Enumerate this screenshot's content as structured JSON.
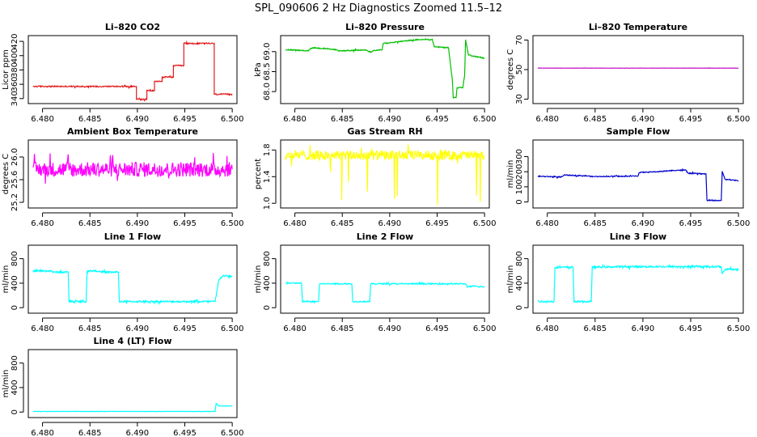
{
  "title": "SPL_090606  2 Hz Diagnostics Zoomed 11.5–12",
  "chart_data": [
    {
      "type": "line",
      "title": "Li–820 CO2",
      "ylabel": "Licor ppm",
      "xlim": [
        6.4785,
        6.5005
      ],
      "ylim": [
        333,
        428
      ],
      "xticks": [
        "6.480",
        "6.485",
        "6.490",
        "6.495",
        "6.500"
      ],
      "yticks": [
        "340",
        "360",
        "380",
        "400",
        "420"
      ],
      "series": [
        {
          "color": "#e31a1c",
          "noise": 0.9,
          "points": [
            [
              6.479,
              357
            ],
            [
              6.4899,
              357
            ],
            [
              6.4899,
              339
            ],
            [
              6.491,
              339
            ],
            [
              6.491,
              351
            ],
            [
              6.4918,
              351
            ],
            [
              6.4918,
              364
            ],
            [
              6.4926,
              364
            ],
            [
              6.4926,
              370
            ],
            [
              6.4938,
              370
            ],
            [
              6.4938,
              386
            ],
            [
              6.4949,
              386
            ],
            [
              6.4949,
              417
            ],
            [
              6.4981,
              417
            ],
            [
              6.4981,
              346
            ],
            [
              6.5,
              346
            ]
          ]
        }
      ]
    },
    {
      "type": "line",
      "title": "Li–820 Pressure",
      "ylabel": "kPa",
      "xlim": [
        6.4785,
        6.5005
      ],
      "ylim": [
        67.7,
        69.4
      ],
      "xticks": [
        "6.480",
        "6.485",
        "6.490",
        "6.495",
        "6.500"
      ],
      "yticks": [
        "68.0",
        "68.5",
        "69.0"
      ],
      "series": [
        {
          "color": "#00c000",
          "noise": 0.012,
          "points": [
            [
              6.479,
              69.05
            ],
            [
              6.4814,
              69.02
            ],
            [
              6.4818,
              69.1
            ],
            [
              6.4843,
              69.05
            ],
            [
              6.4846,
              69.02
            ],
            [
              6.4875,
              69.04
            ],
            [
              6.488,
              68.98
            ],
            [
              6.4883,
              69.03
            ],
            [
              6.4892,
              69.05
            ],
            [
              6.4893,
              69.2
            ],
            [
              6.491,
              69.25
            ],
            [
              6.493,
              69.3
            ],
            [
              6.4945,
              69.3
            ],
            [
              6.4947,
              69.12
            ],
            [
              6.4962,
              69.1
            ],
            [
              6.4966,
              68.3
            ],
            [
              6.4967,
              67.85
            ],
            [
              6.497,
              67.85
            ],
            [
              6.4971,
              68.1
            ],
            [
              6.4977,
              68.1
            ],
            [
              6.4979,
              68.4
            ],
            [
              6.498,
              69.3
            ],
            [
              6.4983,
              68.92
            ],
            [
              6.499,
              68.88
            ],
            [
              6.5,
              68.83
            ]
          ]
        }
      ]
    },
    {
      "type": "line",
      "title": "Li–820 Temperature",
      "ylabel": "degrees C",
      "xlim": [
        6.4785,
        6.5005
      ],
      "ylim": [
        27,
        73
      ],
      "xticks": [
        "6.480",
        "6.485",
        "6.490",
        "6.495",
        "6.500"
      ],
      "yticks": [
        "30",
        "50",
        "70"
      ],
      "series": [
        {
          "color": "#c000c0",
          "noise": 0.05,
          "points": [
            [
              6.479,
              51
            ],
            [
              6.5,
              51
            ]
          ]
        }
      ]
    },
    {
      "type": "line",
      "title": "Ambient Box Temperature",
      "ylabel": "degrees C",
      "xlim": [
        6.4785,
        6.5005
      ],
      "ylim": [
        25.1,
        26.3
      ],
      "xticks": [
        "6.480",
        "6.485",
        "6.490",
        "6.495",
        "6.500"
      ],
      "yticks": [
        "25.2",
        "25.6",
        "26.0"
      ],
      "series": [
        {
          "color": "#ff00ff",
          "noise": 0.13,
          "points": [
            [
              6.479,
              25.78
            ],
            [
              6.5,
              25.78
            ]
          ]
        }
      ]
    },
    {
      "type": "line",
      "title": "Gas Stream RH",
      "ylabel": "percent",
      "xlim": [
        6.4785,
        6.5005
      ],
      "ylim": [
        0.93,
        1.95
      ],
      "xticks": [
        "6.480",
        "6.485",
        "6.490",
        "6.495",
        "6.500"
      ],
      "yticks": [
        "1.0",
        "1.4",
        "1.8"
      ],
      "series": [
        {
          "color": "#ffff00",
          "noise": 0.07,
          "points": [
            [
              6.479,
              1.72
            ],
            [
              6.5,
              1.72
            ]
          ]
        }
      ]
    },
    {
      "type": "line",
      "title": "Sample Flow",
      "ylabel": "ml/min",
      "xlim": [
        6.4785,
        6.5005
      ],
      "ylim": [
        -40,
        410
      ],
      "xticks": [
        "6.480",
        "6.485",
        "6.490",
        "6.495",
        "6.500"
      ],
      "yticks": [
        "0",
        "100",
        "200",
        "300"
      ],
      "series": [
        {
          "color": "#0000cd",
          "noise": 3,
          "points": [
            [
              6.479,
              170
            ],
            [
              6.4815,
              165
            ],
            [
              6.4818,
              178
            ],
            [
              6.4843,
              172
            ],
            [
              6.4846,
              168
            ],
            [
              6.4875,
              170
            ],
            [
              6.488,
              168
            ],
            [
              6.4883,
              170
            ],
            [
              6.4895,
              172
            ],
            [
              6.4896,
              195
            ],
            [
              6.4915,
              200
            ],
            [
              6.4935,
              210
            ],
            [
              6.4945,
              210
            ],
            [
              6.4947,
              190
            ],
            [
              6.4966,
              185
            ],
            [
              6.4967,
              10
            ],
            [
              6.4982,
              10
            ],
            [
              6.4983,
              200
            ],
            [
              6.4986,
              150
            ],
            [
              6.5,
              140
            ]
          ]
        }
      ]
    },
    {
      "type": "line",
      "title": "Line 1 Flow",
      "ylabel": "ml/min",
      "xlim": [
        6.4785,
        6.5005
      ],
      "ylim": [
        -90,
        1020
      ],
      "xticks": [
        "6.480",
        "6.485",
        "6.490",
        "6.495",
        "6.500"
      ],
      "yticks": [
        "0",
        "400",
        "800"
      ],
      "series": [
        {
          "color": "#00ffff",
          "noise": 14,
          "points": [
            [
              6.479,
              600
            ],
            [
              6.481,
              600
            ],
            [
              6.4811,
              580
            ],
            [
              6.4827,
              580
            ],
            [
              6.4828,
              100
            ],
            [
              6.4846,
              100
            ],
            [
              6.4847,
              600
            ],
            [
              6.486,
              600
            ],
            [
              6.4861,
              580
            ],
            [
              6.488,
              580
            ],
            [
              6.4881,
              100
            ],
            [
              6.4982,
              100
            ],
            [
              6.4986,
              460
            ],
            [
              6.499,
              520
            ],
            [
              6.5,
              510
            ]
          ]
        }
      ]
    },
    {
      "type": "line",
      "title": "Line 2 Flow",
      "ylabel": "ml/min",
      "xlim": [
        6.4785,
        6.5005
      ],
      "ylim": [
        -90,
        1020
      ],
      "xticks": [
        "6.480",
        "6.485",
        "6.490",
        "6.495",
        "6.500"
      ],
      "yticks": [
        "0",
        "400",
        "800"
      ],
      "series": [
        {
          "color": "#00ffff",
          "noise": 10,
          "points": [
            [
              6.479,
              400
            ],
            [
              6.4807,
              400
            ],
            [
              6.4808,
              100
            ],
            [
              6.4825,
              100
            ],
            [
              6.4826,
              390
            ],
            [
              6.486,
              390
            ],
            [
              6.4861,
              100
            ],
            [
              6.4879,
              100
            ],
            [
              6.488,
              390
            ],
            [
              6.498,
              390
            ],
            [
              6.4982,
              340
            ],
            [
              6.4988,
              350
            ],
            [
              6.5,
              340
            ]
          ]
        }
      ]
    },
    {
      "type": "line",
      "title": "Line 3 Flow",
      "ylabel": "ml/min",
      "xlim": [
        6.4785,
        6.5005
      ],
      "ylim": [
        -90,
        1020
      ],
      "xticks": [
        "6.480",
        "6.485",
        "6.490",
        "6.495",
        "6.500"
      ],
      "yticks": [
        "0",
        "400",
        "800"
      ],
      "series": [
        {
          "color": "#00ffff",
          "noise": 14,
          "points": [
            [
              6.479,
              100
            ],
            [
              6.4807,
              100
            ],
            [
              6.4808,
              660
            ],
            [
              6.4827,
              660
            ],
            [
              6.4828,
              100
            ],
            [
              6.4846,
              100
            ],
            [
              6.4847,
              660
            ],
            [
              6.488,
              670
            ],
            [
              6.4982,
              670
            ],
            [
              6.4983,
              560
            ],
            [
              6.4986,
              620
            ],
            [
              6.499,
              630
            ],
            [
              6.5,
              620
            ]
          ]
        }
      ]
    },
    {
      "type": "line",
      "title": "Line 4 (LT) Flow",
      "ylabel": "ml/min",
      "xlim": [
        6.4785,
        6.5005
      ],
      "ylim": [
        -90,
        1020
      ],
      "xticks": [
        "6.480",
        "6.485",
        "6.490",
        "6.495",
        "6.500"
      ],
      "yticks": [
        "0",
        "400",
        "800"
      ],
      "series": [
        {
          "color": "#00ffff",
          "noise": 2,
          "points": [
            [
              6.479,
              10
            ],
            [
              6.4982,
              10
            ],
            [
              6.4983,
              140
            ],
            [
              6.4986,
              100
            ],
            [
              6.5,
              100
            ]
          ]
        }
      ]
    }
  ]
}
